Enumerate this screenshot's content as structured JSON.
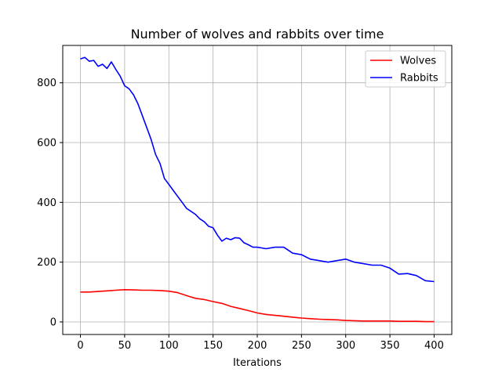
{
  "chart_data": {
    "type": "line",
    "title": "Number of wolves and rabbits over time",
    "xlabel": "Iterations",
    "ylabel": "",
    "xlim": [
      -20,
      420
    ],
    "ylim": [
      -42,
      925
    ],
    "xticks": [
      0,
      50,
      100,
      150,
      200,
      250,
      300,
      350,
      400
    ],
    "yticks": [
      0,
      200,
      400,
      600,
      800
    ],
    "grid": true,
    "legend_position": "top-right",
    "series": [
      {
        "name": "Wolves",
        "color": "#ff0000",
        "x": [
          0,
          10,
          20,
          30,
          40,
          50,
          60,
          70,
          80,
          90,
          100,
          110,
          120,
          130,
          140,
          150,
          160,
          170,
          180,
          190,
          200,
          210,
          220,
          230,
          240,
          250,
          260,
          270,
          280,
          290,
          300,
          310,
          320,
          330,
          340,
          350,
          360,
          370,
          380,
          390,
          400
        ],
        "y": [
          100,
          100,
          102,
          104,
          106,
          108,
          107,
          106,
          106,
          105,
          103,
          98,
          88,
          79,
          75,
          68,
          62,
          52,
          45,
          38,
          30,
          25,
          22,
          19,
          16,
          13,
          11,
          9,
          8,
          7,
          5,
          4,
          3,
          3,
          3,
          3,
          2,
          2,
          2,
          1,
          1
        ]
      },
      {
        "name": "Rabbits",
        "color": "#0000ff",
        "x": [
          0,
          5,
          10,
          15,
          20,
          25,
          30,
          35,
          40,
          45,
          50,
          55,
          60,
          65,
          70,
          75,
          80,
          85,
          90,
          95,
          100,
          105,
          110,
          115,
          120,
          125,
          130,
          135,
          140,
          145,
          150,
          155,
          160,
          165,
          170,
          175,
          180,
          185,
          190,
          195,
          200,
          210,
          220,
          230,
          240,
          250,
          260,
          270,
          280,
          290,
          300,
          310,
          320,
          330,
          340,
          350,
          360,
          370,
          380,
          390,
          400
        ],
        "y": [
          880,
          885,
          872,
          875,
          855,
          862,
          848,
          870,
          845,
          822,
          790,
          780,
          760,
          730,
          690,
          650,
          610,
          560,
          530,
          480,
          460,
          440,
          420,
          400,
          380,
          370,
          360,
          345,
          335,
          320,
          315,
          290,
          270,
          280,
          275,
          282,
          280,
          265,
          258,
          250,
          250,
          245,
          250,
          250,
          230,
          225,
          210,
          205,
          200,
          205,
          210,
          200,
          195,
          190,
          190,
          180,
          160,
          162,
          155,
          138,
          135
        ]
      }
    ]
  }
}
